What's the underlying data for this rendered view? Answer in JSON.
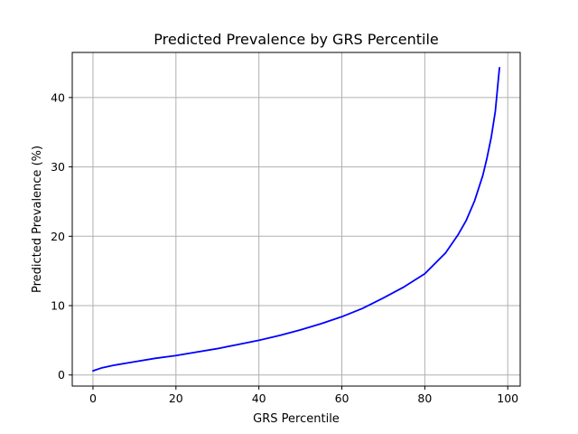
{
  "chart_data": {
    "type": "line",
    "title": "Predicted Prevalence by GRS Percentile",
    "xlabel": "GRS Percentile",
    "ylabel": "Predicted Prevalence (%)",
    "xlim": [
      -5,
      103
    ],
    "ylim": [
      -1.6,
      46.5
    ],
    "xticks": [
      0,
      20,
      40,
      60,
      80,
      100
    ],
    "yticks": [
      0,
      10,
      20,
      30,
      40
    ],
    "grid": true,
    "series": [
      {
        "color": "#0000ff",
        "x": [
          0,
          2,
          5,
          10,
          15,
          20,
          25,
          30,
          35,
          40,
          45,
          50,
          55,
          60,
          65,
          70,
          75,
          80,
          85,
          88,
          90,
          92,
          94,
          95,
          96,
          97,
          98
        ],
        "y": [
          0.6,
          1.0,
          1.4,
          1.9,
          2.4,
          2.8,
          3.3,
          3.8,
          4.4,
          5.0,
          5.7,
          6.5,
          7.4,
          8.4,
          9.6,
          11.1,
          12.7,
          14.6,
          17.6,
          20.2,
          22.3,
          25.1,
          28.8,
          31.3,
          34.2,
          38.0,
          44.3
        ]
      }
    ]
  }
}
